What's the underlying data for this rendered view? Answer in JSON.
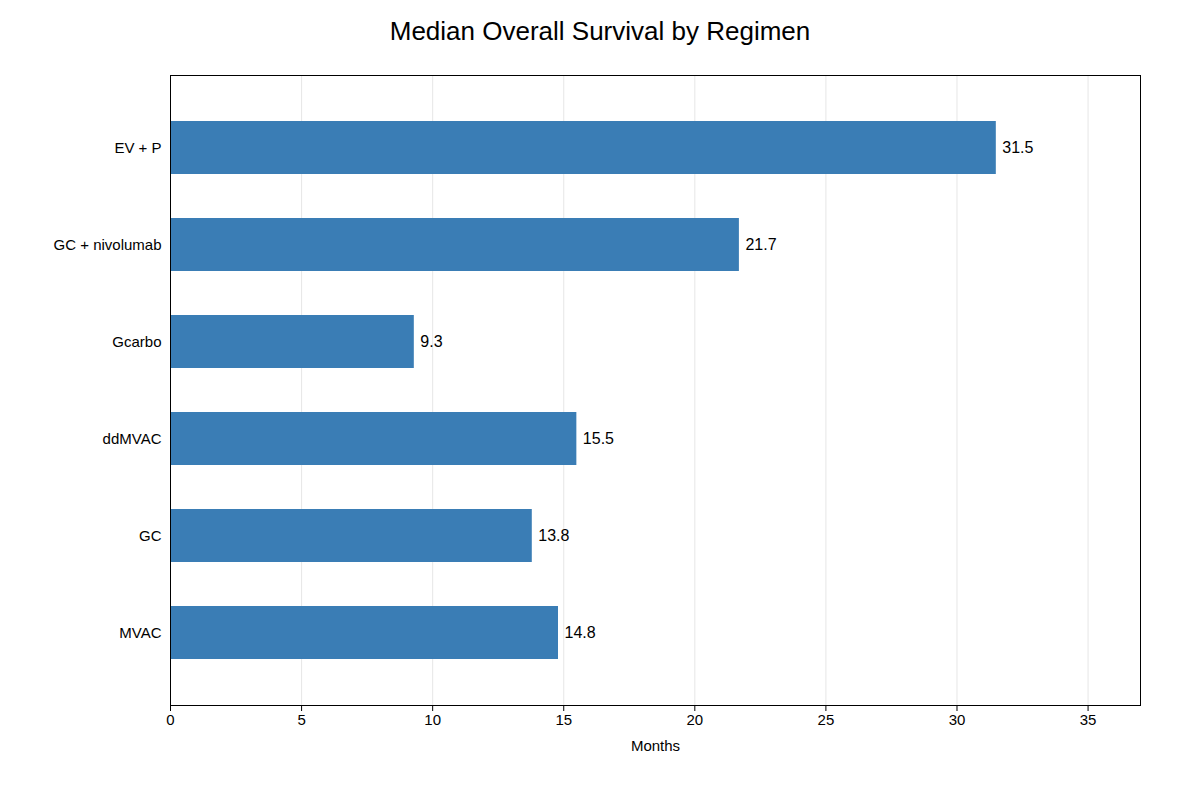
{
  "chart_data": {
    "type": "bar",
    "orientation": "horizontal",
    "title": "Median Overall Survival by Regimen",
    "categories": [
      "EV + P",
      "GC + nivolumab",
      "Gcarbo",
      "ddMVAC",
      "GC",
      "MVAC"
    ],
    "values": [
      31.5,
      21.7,
      9.3,
      15.5,
      13.8,
      14.8
    ],
    "color": "#3a7db5",
    "xlabel": "Months",
    "xlim": [
      0,
      37
    ],
    "xticks": [
      0,
      5,
      10,
      15,
      20,
      25,
      30,
      35
    ],
    "grid": true,
    "data_labels": true
  }
}
